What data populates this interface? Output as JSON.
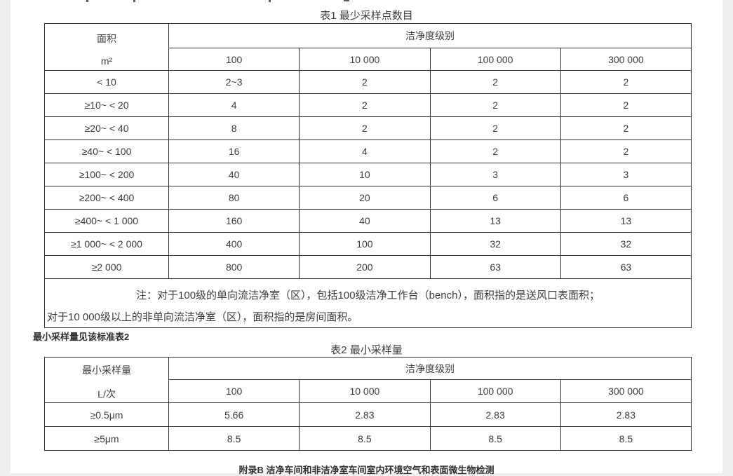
{
  "page": {
    "table1": {
      "title": "表1 最少采样点数目",
      "header": {
        "col1_line1": "面积",
        "col1_line2": "m²",
        "group_label": "洁净度级别",
        "classes": [
          "100",
          "10 000",
          "100 000",
          "300 000"
        ]
      },
      "rows": [
        {
          "area": "< 10",
          "values": [
            "2~3",
            "2",
            "2",
            "2"
          ]
        },
        {
          "area": "≥10~ < 20",
          "values": [
            "4",
            "2",
            "2",
            "2"
          ]
        },
        {
          "area": "≥20~ < 40",
          "values": [
            "8",
            "2",
            "2",
            "2"
          ]
        },
        {
          "area": "≥40~ < 100",
          "values": [
            "16",
            "4",
            "2",
            "2"
          ]
        },
        {
          "area": "≥100~ < 200",
          "values": [
            "40",
            "10",
            "3",
            "3"
          ]
        },
        {
          "area": "≥200~ < 400",
          "values": [
            "80",
            "20",
            "6",
            "6"
          ]
        },
        {
          "area": "≥400~ < 1 000",
          "values": [
            "160",
            "40",
            "13",
            "13"
          ]
        },
        {
          "area": "≥1 000~ < 2 000",
          "values": [
            "400",
            "100",
            "32",
            "32"
          ]
        },
        {
          "area": "≥2 000",
          "values": [
            "800",
            "200",
            "63",
            "63"
          ]
        }
      ],
      "note_line1": "注：对于100级的单向流洁净室（区），包括100级洁净工作台（bench），面积指的是送风口表面积；",
      "note_line2": "对于10 000级以上的非单向流洁净室（区），面积指的是房间面积。"
    },
    "between_text": "最小采样量见该标准表2",
    "table2": {
      "title": "表2 最小采样量",
      "header": {
        "col1_line1": "最小采样量",
        "col1_line2": "L/次",
        "group_label": "洁净度级别",
        "classes": [
          "100",
          "10 000",
          "100 000",
          "300 000"
        ]
      },
      "rows": [
        {
          "size": "≥0.5μm",
          "values": [
            "5.66",
            "2.83",
            "2.83",
            "2.83"
          ]
        },
        {
          "size": "≥5μm",
          "values": [
            "8.5",
            "8.5",
            "8.5",
            "8.5"
          ]
        }
      ]
    },
    "footer_heading": "附录B 洁净车间和非洁净室车间室内环境空气和表面微生物检测"
  }
}
